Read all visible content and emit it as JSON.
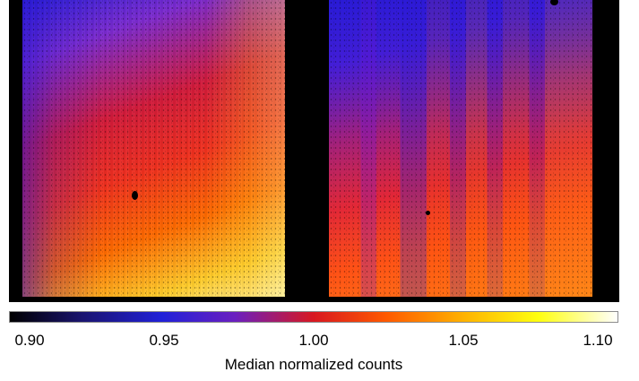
{
  "colorbar": {
    "ticks": [
      "0.90",
      "0.95",
      "1.00",
      "1.05",
      "1.10"
    ],
    "label": "Median normalized counts",
    "range": [
      0.9,
      1.1
    ],
    "colormap": [
      "#000000",
      "#2020d8",
      "#d81820",
      "#ffb400",
      "#ffff10",
      "#ffffff"
    ]
  },
  "image": {
    "background": "#000000",
    "panels": [
      "left-detector-flat-field",
      "right-detector-flat-field"
    ]
  }
}
